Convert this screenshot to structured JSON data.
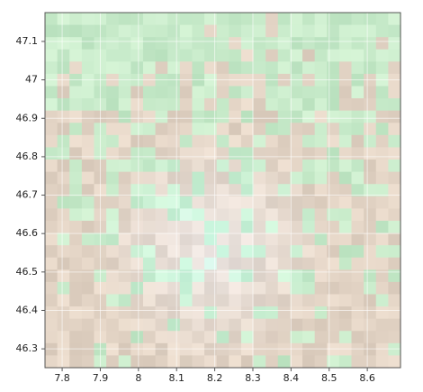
{
  "chart_data": {
    "type": "raster",
    "xlim": [
      7.755,
      8.687
    ],
    "ylim": [
      46.251,
      47.175
    ],
    "xticks": [
      7.8,
      7.9,
      8,
      8.1,
      8.2,
      8.3,
      8.4,
      8.5,
      8.6
    ],
    "yticks": [
      46.3,
      46.4,
      46.5,
      46.6,
      46.7,
      46.8,
      46.9,
      47,
      47.1
    ],
    "grid": true
  }
}
